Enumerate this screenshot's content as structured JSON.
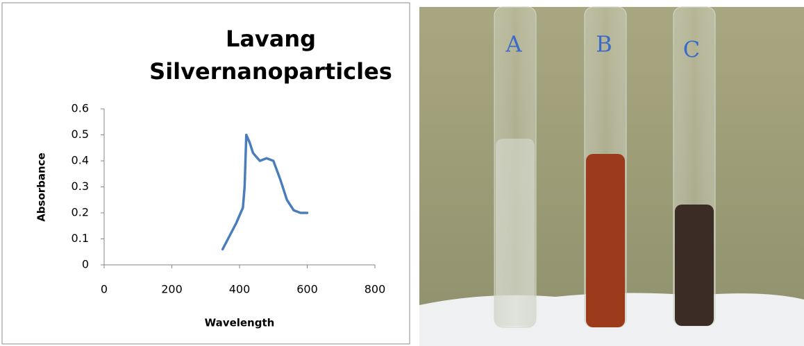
{
  "chart_data": {
    "type": "line",
    "title": [
      "Lavang",
      "Silvernanoparticles"
    ],
    "x_label": "Wavelength",
    "y_label": "Absorbance",
    "x": [
      350,
      370,
      390,
      410,
      415,
      420,
      430,
      440,
      460,
      480,
      500,
      520,
      540,
      560,
      580,
      600
    ],
    "series": [
      {
        "name": "Absorbance",
        "color": "#4a7ebb",
        "values": [
          0.06,
          0.11,
          0.16,
          0.22,
          0.3,
          0.5,
          0.47,
          0.43,
          0.4,
          0.41,
          0.4,
          0.33,
          0.25,
          0.21,
          0.2,
          0.2
        ]
      }
    ],
    "xlim": [
      0,
      800
    ],
    "xticks": [
      0,
      200,
      400,
      600,
      800
    ],
    "ylim": [
      0,
      0.6
    ],
    "yticks": [
      0,
      0.1,
      0.2,
      0.3,
      0.4,
      0.5,
      0.6
    ],
    "grid": false,
    "legend": false
  },
  "photo": {
    "labels": [
      "A",
      "B",
      "C"
    ]
  }
}
